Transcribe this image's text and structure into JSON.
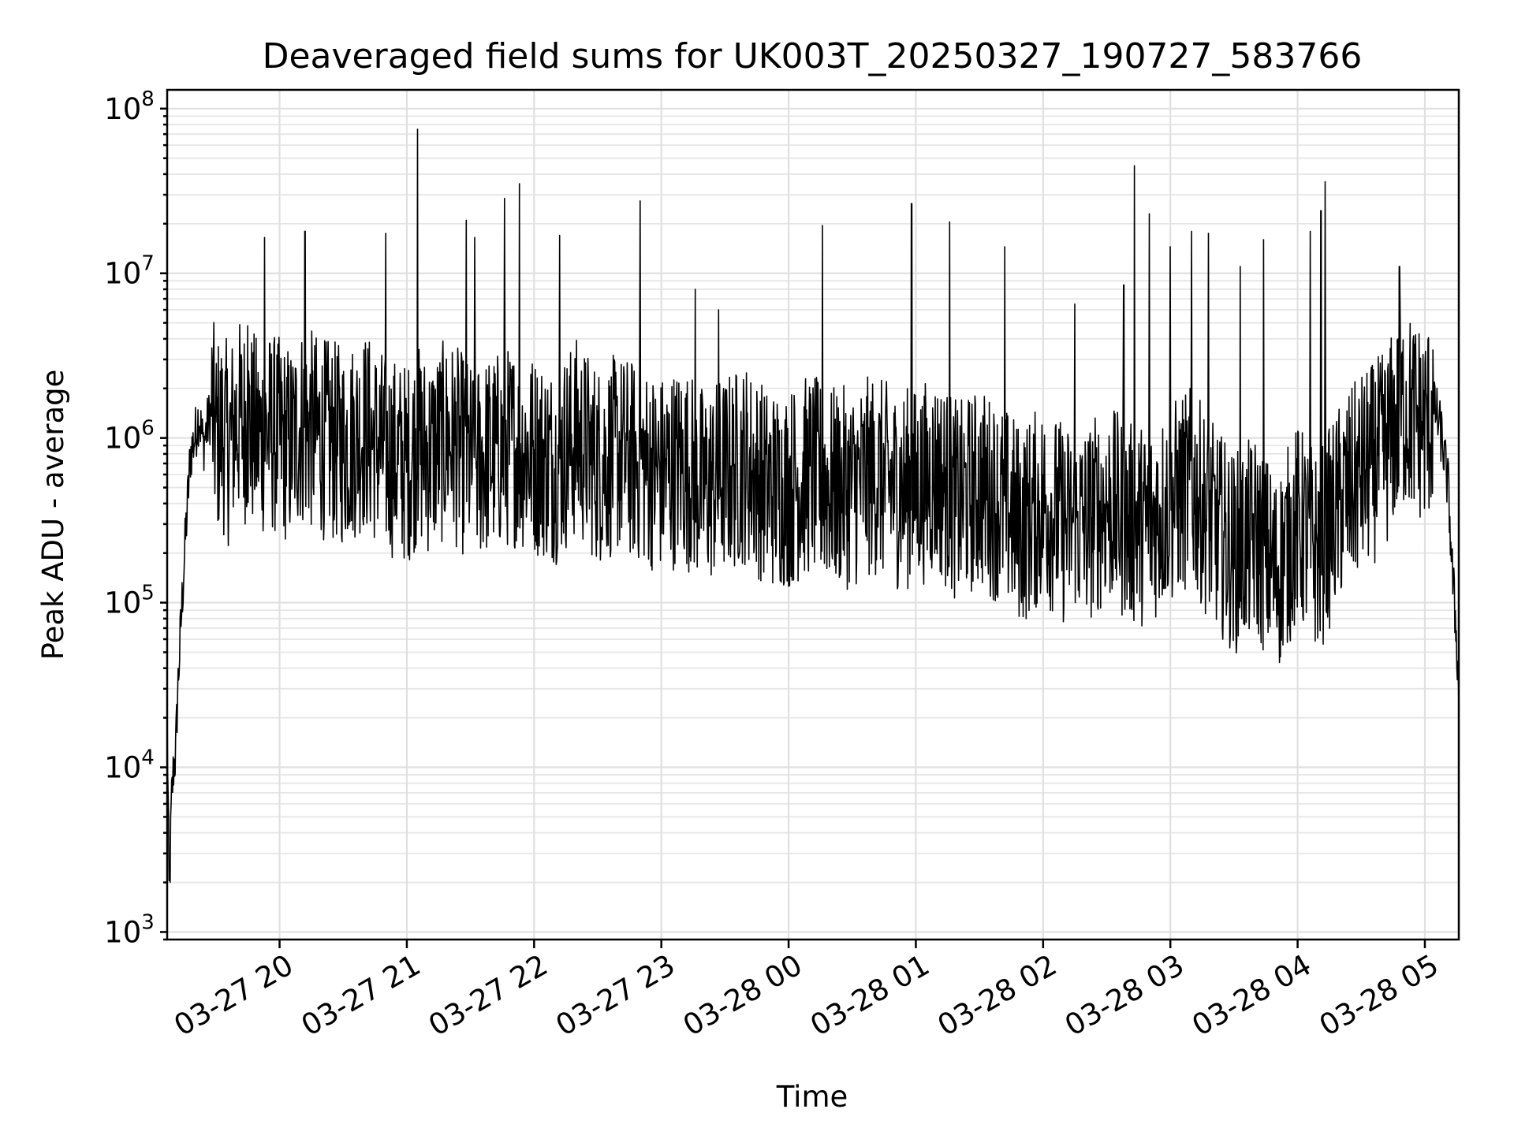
{
  "chart_data": {
    "type": "line",
    "title": "Deaveraged field sums for UK003T_20250327_190727_583766",
    "xlabel": "Time",
    "ylabel": "Peak ADU - average",
    "yscale": "log",
    "ylim": [
      900,
      130000000
    ],
    "xlim": [
      "03-27 19:07",
      "03-28 05:16"
    ],
    "grid": true,
    "x_ticks": [
      "03-27 20",
      "03-27 21",
      "03-27 22",
      "03-27 23",
      "03-28 00",
      "03-28 01",
      "03-28 02",
      "03-28 03",
      "03-28 04",
      "03-28 05"
    ],
    "y_ticks": [
      {
        "base": "10",
        "exp": "3"
      },
      {
        "base": "10",
        "exp": "4"
      },
      {
        "base": "10",
        "exp": "5"
      },
      {
        "base": "10",
        "exp": "6"
      },
      {
        "base": "10",
        "exp": "7"
      },
      {
        "base": "10",
        "exp": "8"
      }
    ],
    "line_color": "#000000",
    "series": [
      {
        "x": [
          "03-27 19:07",
          "03-27 19:08",
          "03-27 19:09",
          "03-27 19:10",
          "03-27 19:11",
          "03-27 19:12",
          "03-27 19:14",
          "03-27 19:16",
          "03-27 19:18",
          "03-27 19:20",
          "03-27 19:22",
          "03-27 19:24",
          "03-27 19:26",
          "03-27 19:28",
          "03-27 19:30",
          "03-27 19:33",
          "03-27 19:36",
          "03-27 19:40",
          "03-27 19:45",
          "03-27 19:50",
          "03-27 19:55",
          "03-27 20:00",
          "03-27 20:05",
          "03-27 20:10",
          "03-27 20:15",
          "03-27 20:20",
          "03-27 20:30",
          "03-27 20:40",
          "03-27 20:50",
          "03-27 21:00",
          "03-27 21:05",
          "03-27 21:10",
          "03-27 21:20",
          "03-27 21:30",
          "03-27 21:40",
          "03-27 21:50",
          "03-27 22:00",
          "03-27 22:10",
          "03-27 22:20",
          "03-27 22:30",
          "03-27 22:40",
          "03-27 22:50",
          "03-27 23:00",
          "03-27 23:10",
          "03-27 23:20",
          "03-27 23:30",
          "03-27 23:40",
          "03-27 23:50",
          "03-28 00:00",
          "03-28 00:10",
          "03-28 00:20",
          "03-28 00:30",
          "03-28 00:40",
          "03-28 00:50",
          "03-28 01:00",
          "03-28 01:10",
          "03-28 01:20",
          "03-28 01:30",
          "03-28 01:40",
          "03-28 01:50",
          "03-28 02:00",
          "03-28 02:10",
          "03-28 02:20",
          "03-28 02:30",
          "03-28 02:40",
          "03-28 02:50",
          "03-28 03:00",
          "03-28 03:10",
          "03-28 03:20",
          "03-28 03:30",
          "03-28 03:40",
          "03-28 03:50",
          "03-28 04:00",
          "03-28 04:10",
          "03-28 04:20",
          "03-28 04:30",
          "03-28 04:40",
          "03-28 04:50",
          "03-28 05:00",
          "03-28 05:05",
          "03-28 05:08",
          "03-28 05:11",
          "03-28 05:13",
          "03-28 05:15",
          "03-28 05:16"
        ],
        "values": [
          20000,
          1500,
          6000,
          10000,
          12000,
          30000,
          100000,
          300000,
          800000,
          1000000,
          1400000,
          900000,
          1200000,
          1500000,
          1000000,
          1100000,
          900000,
          1300000,
          1200000,
          1000000,
          1100000,
          1000000,
          900000,
          1200000,
          1100000,
          1000000,
          900000,
          1100000,
          800000,
          700000,
          900000,
          800000,
          1000000,
          700000,
          800000,
          900000,
          800000,
          700000,
          1000000,
          700000,
          800000,
          700000,
          600000,
          700000,
          500000,
          600000,
          700000,
          500000,
          500000,
          600000,
          500000,
          500000,
          600000,
          500000,
          500000,
          600000,
          400000,
          500000,
          400000,
          300000,
          400000,
          300000,
          300000,
          400000,
          300000,
          300000,
          400000,
          500000,
          300000,
          200000,
          250000,
          150000,
          300000,
          200000,
          400000,
          600000,
          800000,
          1500000,
          1200000,
          1500000,
          1000000,
          500000,
          150000,
          60000,
          25000
        ]
      }
    ],
    "spikes": [
      {
        "x": "03-27 19:45",
        "value": 4800000
      },
      {
        "x": "03-27 19:53",
        "value": 16500000
      },
      {
        "x": "03-27 20:12",
        "value": 18000000
      },
      {
        "x": "03-27 20:50",
        "value": 17500000
      },
      {
        "x": "03-27 21:05",
        "value": 75000000
      },
      {
        "x": "03-27 21:28",
        "value": 21000000
      },
      {
        "x": "03-27 21:32",
        "value": 16500000
      },
      {
        "x": "03-27 21:46",
        "value": 28500000
      },
      {
        "x": "03-27 21:53",
        "value": 35000000
      },
      {
        "x": "03-27 22:12",
        "value": 17000000
      },
      {
        "x": "03-27 22:50",
        "value": 27500000
      },
      {
        "x": "03-27 23:16",
        "value": 8000000
      },
      {
        "x": "03-27 23:27",
        "value": 6000000
      },
      {
        "x": "03-28 00:16",
        "value": 19500000
      },
      {
        "x": "03-28 00:58",
        "value": 26500000
      },
      {
        "x": "03-28 01:16",
        "value": 20500000
      },
      {
        "x": "03-28 01:42",
        "value": 14500000
      },
      {
        "x": "03-28 02:15",
        "value": 6500000
      },
      {
        "x": "03-28 02:38",
        "value": 8500000
      },
      {
        "x": "03-28 02:43",
        "value": 45000000
      },
      {
        "x": "03-28 02:50",
        "value": 23000000
      },
      {
        "x": "03-28 03:00",
        "value": 14500000
      },
      {
        "x": "03-28 03:10",
        "value": 18000000
      },
      {
        "x": "03-28 03:18",
        "value": 17500000
      },
      {
        "x": "03-28 03:33",
        "value": 11000000
      },
      {
        "x": "03-28 03:44",
        "value": 16000000
      },
      {
        "x": "03-28 04:06",
        "value": 18000000
      },
      {
        "x": "03-28 04:11",
        "value": 24000000
      },
      {
        "x": "03-28 04:13",
        "value": 36000000
      },
      {
        "x": "03-28 04:48",
        "value": 11000000
      }
    ]
  }
}
